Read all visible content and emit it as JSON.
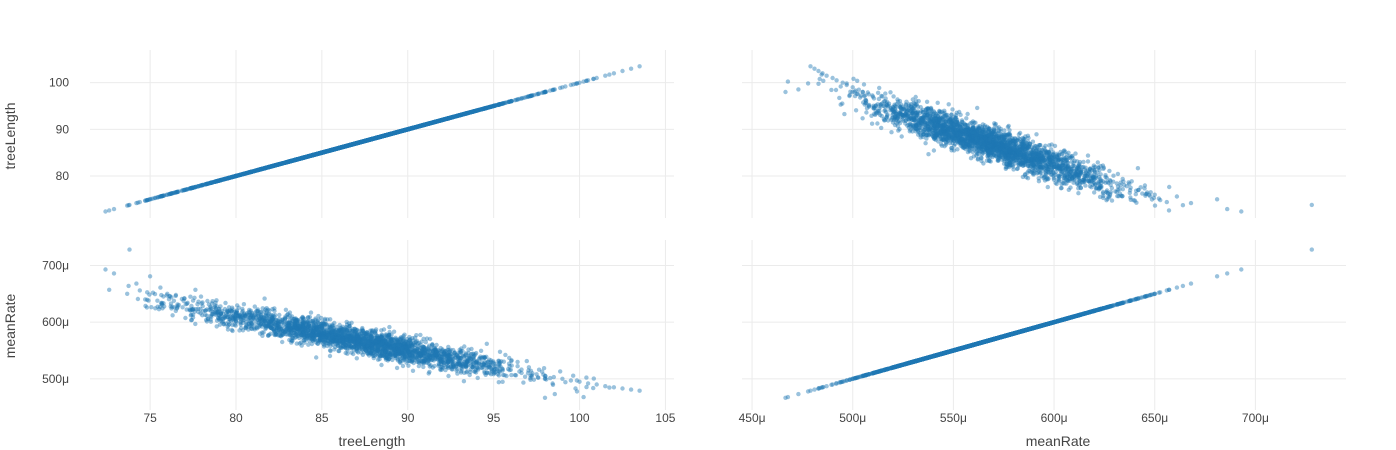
{
  "chart_data": {
    "type": "scatter",
    "layout": "scatter-matrix",
    "variables": [
      "treeLength",
      "meanRate"
    ],
    "marker_color": "#1f77b4",
    "marker_opacity": 0.45,
    "grid": true,
    "axes": {
      "treeLength": {
        "label": "treeLength",
        "range": [
          71.5,
          105.5
        ],
        "x_ticks": [
          {
            "v": 75,
            "label": "75"
          },
          {
            "v": 80,
            "label": "80"
          },
          {
            "v": 85,
            "label": "85"
          },
          {
            "v": 90,
            "label": "90"
          },
          {
            "v": 95,
            "label": "95"
          },
          {
            "v": 100,
            "label": "100"
          },
          {
            "v": 105,
            "label": "105"
          }
        ],
        "y_ticks": [
          {
            "v": 80,
            "label": "80"
          },
          {
            "v": 90,
            "label": "90"
          },
          {
            "v": 100,
            "label": "100"
          }
        ],
        "y_range": [
          71,
          107
        ]
      },
      "meanRate": {
        "label": "meanRate",
        "range": [
          0.000445,
          0.000745
        ],
        "x_ticks": [
          {
            "v": 0.00045,
            "label": "450μ"
          },
          {
            "v": 0.0005,
            "label": "500μ"
          },
          {
            "v": 0.00055,
            "label": "550μ"
          },
          {
            "v": 0.0006,
            "label": "600μ"
          },
          {
            "v": 0.00065,
            "label": "650μ"
          },
          {
            "v": 0.0007,
            "label": "700μ"
          }
        ],
        "y_ticks": [
          {
            "v": 0.0005,
            "label": "500μ"
          },
          {
            "v": 0.0006,
            "label": "600μ"
          },
          {
            "v": 0.0007,
            "label": "700μ"
          }
        ],
        "y_range": [
          0.000445,
          0.000745
        ]
      }
    },
    "panels": [
      {
        "row": "treeLength",
        "col": "treeLength",
        "pattern": "identity"
      },
      {
        "row": "treeLength",
        "col": "meanRate",
        "pattern": "negative-correlation"
      },
      {
        "row": "meanRate",
        "col": "treeLength",
        "pattern": "negative-correlation"
      },
      {
        "row": "meanRate",
        "col": "meanRate",
        "pattern": "identity"
      }
    ],
    "sample_points": [
      [
        72.4,
        0.000693
      ],
      [
        72.9,
        0.000686
      ],
      [
        73.8,
        0.000728
      ],
      [
        74.2,
        0.000668
      ],
      [
        74.4,
        0.000656
      ],
      [
        75.0,
        0.000681
      ],
      [
        75.6,
        0.000661
      ],
      [
        76.0,
        0.00065
      ],
      [
        76.5,
        0.000648
      ],
      [
        77.0,
        0.000642
      ],
      [
        77.5,
        0.000638
      ],
      [
        78.0,
        0.000633
      ],
      [
        78.5,
        0.000627
      ],
      [
        79.0,
        0.000623
      ],
      [
        79.5,
        0.000619
      ],
      [
        80.0,
        0.000615
      ],
      [
        80.5,
        0.000611
      ],
      [
        81.0,
        0.000607
      ],
      [
        81.5,
        0.000604
      ],
      [
        82.0,
        0.0006
      ],
      [
        82.5,
        0.000597
      ],
      [
        83.0,
        0.000593
      ],
      [
        83.5,
        0.00059
      ],
      [
        84.0,
        0.000586
      ],
      [
        84.5,
        0.000583
      ],
      [
        85.0,
        0.00058
      ],
      [
        85.5,
        0.000577
      ],
      [
        86.0,
        0.000574
      ],
      [
        86.5,
        0.000571
      ],
      [
        87.0,
        0.000568
      ],
      [
        87.5,
        0.000565
      ],
      [
        88.0,
        0.000562
      ],
      [
        88.5,
        0.000559
      ],
      [
        89.0,
        0.000556
      ],
      [
        89.5,
        0.000553
      ],
      [
        90.0,
        0.00055
      ],
      [
        90.5,
        0.000547
      ],
      [
        91.0,
        0.000544
      ],
      [
        91.5,
        0.000541
      ],
      [
        92.0,
        0.000538
      ],
      [
        92.5,
        0.000535
      ],
      [
        93.0,
        0.000532
      ],
      [
        93.5,
        0.00053
      ],
      [
        94.0,
        0.000527
      ],
      [
        94.5,
        0.000524
      ],
      [
        95.0,
        0.000521
      ],
      [
        95.5,
        0.000518
      ],
      [
        96.0,
        0.000516
      ],
      [
        96.5,
        0.000513
      ],
      [
        97.0,
        0.00051
      ],
      [
        97.5,
        0.000508
      ],
      [
        98.0,
        0.000505
      ],
      [
        98.5,
        0.000503
      ],
      [
        99.0,
        0.0005
      ],
      [
        99.5,
        0.000497
      ],
      [
        100.0,
        0.000495
      ],
      [
        100.5,
        0.000492
      ],
      [
        101.0,
        0.00049
      ],
      [
        101.5,
        0.000487
      ],
      [
        102.0,
        0.000485
      ],
      [
        102.5,
        0.000483
      ],
      [
        103.0,
        0.000481
      ],
      [
        103.5,
        0.000479
      ]
    ]
  }
}
